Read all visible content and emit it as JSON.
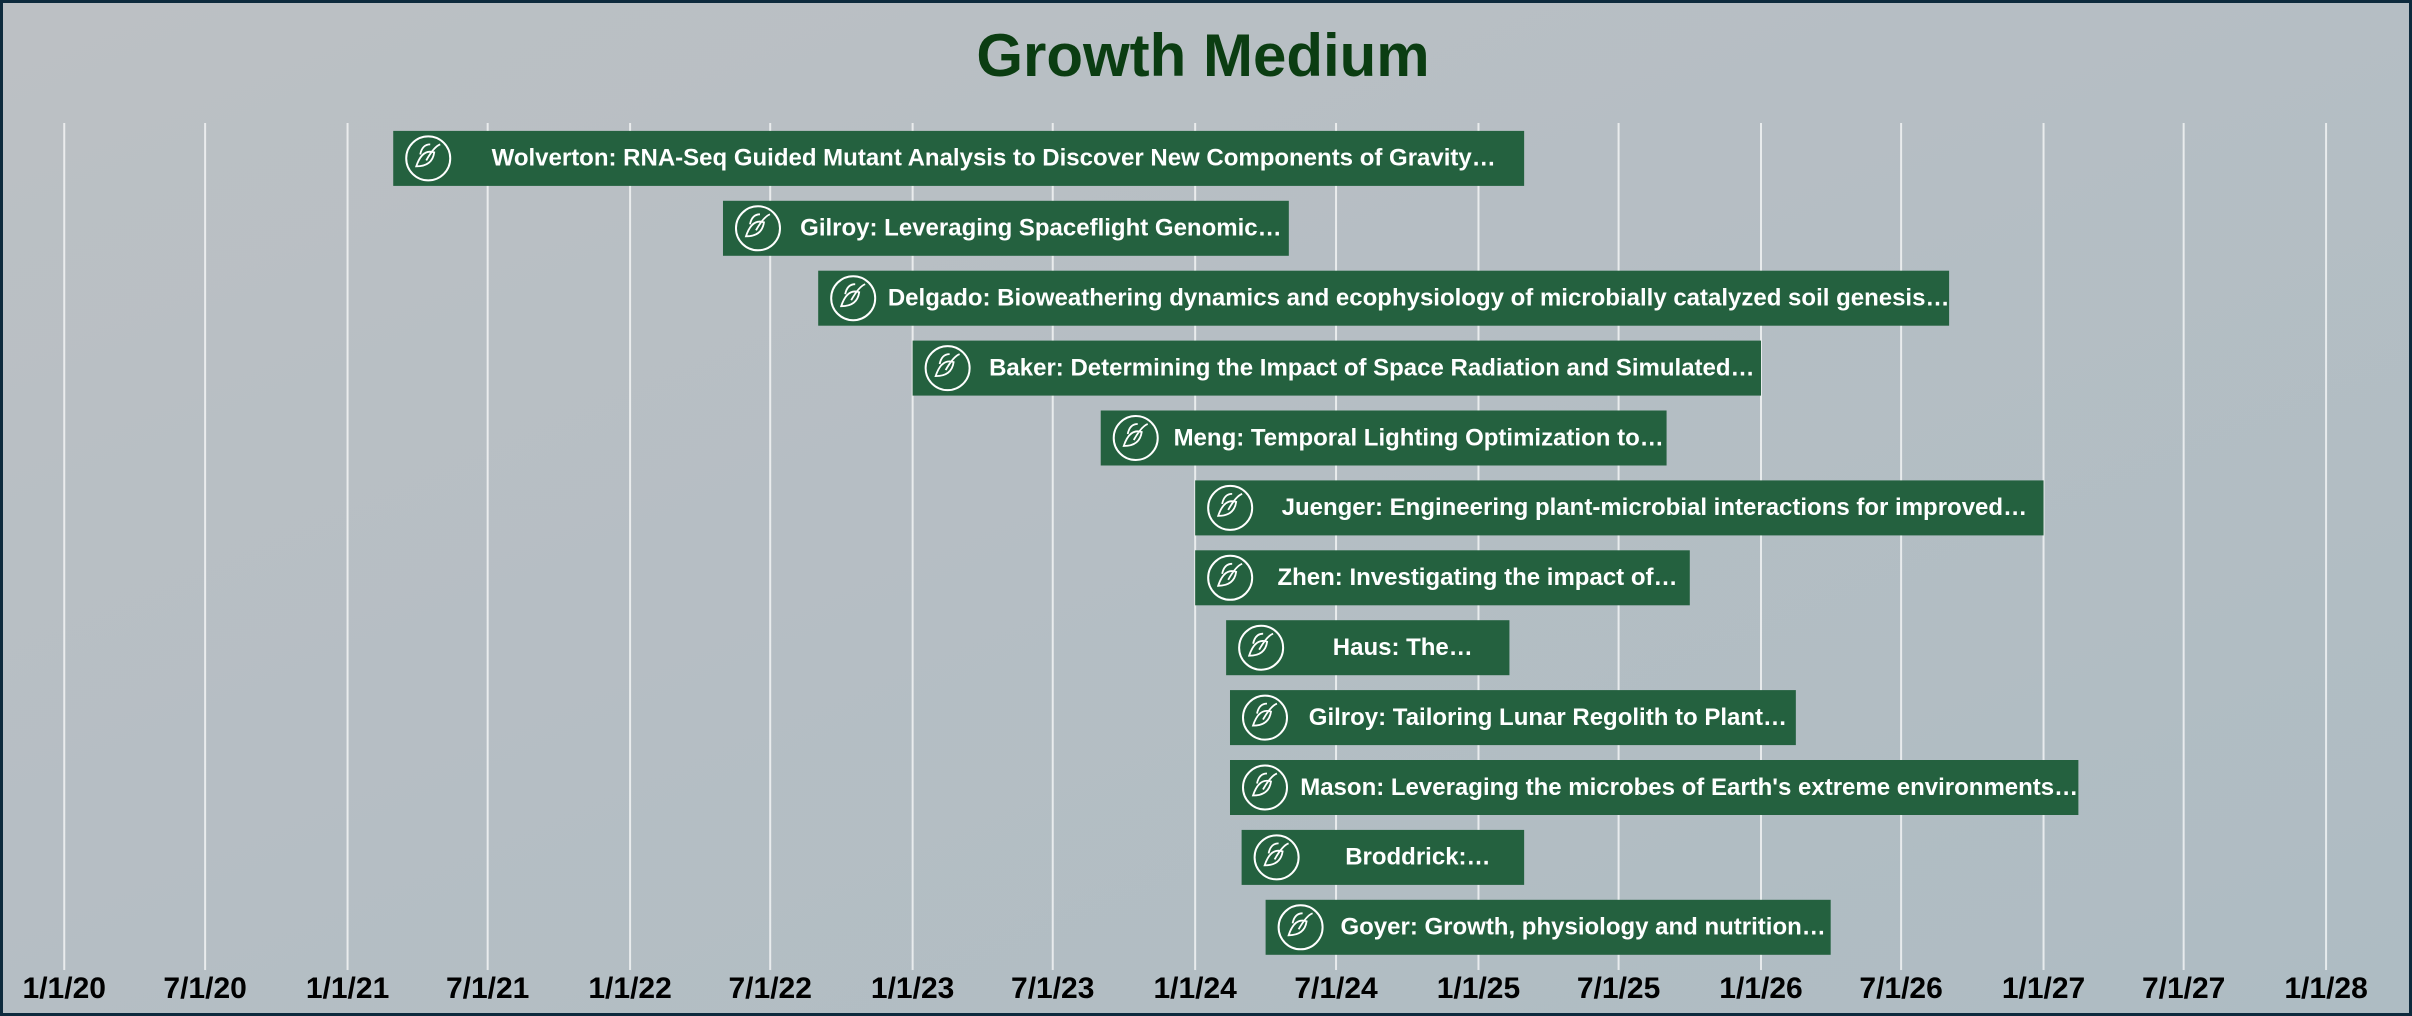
{
  "chart_data": {
    "type": "timeline",
    "title": "Growth Medium",
    "color": "#24613f",
    "grid": true,
    "xlim": [
      "2019-10-10",
      "2028-04-21"
    ],
    "xticks": [
      {
        "value": "2020-01-01",
        "label": "1/1/20"
      },
      {
        "value": "2020-07-01",
        "label": "7/1/20"
      },
      {
        "value": "2021-01-01",
        "label": "1/1/21"
      },
      {
        "value": "2021-07-01",
        "label": "7/1/21"
      },
      {
        "value": "2022-01-01",
        "label": "1/1/22"
      },
      {
        "value": "2022-07-01",
        "label": "7/1/22"
      },
      {
        "value": "2023-01-01",
        "label": "1/1/23"
      },
      {
        "value": "2023-07-01",
        "label": "7/1/23"
      },
      {
        "value": "2024-01-01",
        "label": "1/1/24"
      },
      {
        "value": "2024-07-01",
        "label": "7/1/24"
      },
      {
        "value": "2025-01-01",
        "label": "1/1/25"
      },
      {
        "value": "2025-07-01",
        "label": "7/1/25"
      },
      {
        "value": "2026-01-01",
        "label": "1/1/26"
      },
      {
        "value": "2026-07-01",
        "label": "7/1/26"
      },
      {
        "value": "2027-01-01",
        "label": "1/1/27"
      },
      {
        "value": "2027-07-01",
        "label": "7/1/27"
      },
      {
        "value": "2028-01-01",
        "label": "1/1/28"
      }
    ],
    "tasks": [
      {
        "label": "Wolverton: RNA-Seq Guided Mutant Analysis to Discover New Components of Gravity…",
        "start": "2021-03-01",
        "end": "2025-03-01"
      },
      {
        "label": "Gilroy: Leveraging Spaceflight Genomic…",
        "start": "2022-05-01",
        "end": "2024-05-01"
      },
      {
        "label": "Delgado: Bioweathering dynamics and ecophysiology of microbially catalyzed soil genesis…",
        "start": "2022-09-01",
        "end": "2026-09-01"
      },
      {
        "label": "Baker: Determining the Impact of Space Radiation and Simulated…",
        "start": "2023-01-01",
        "end": "2026-01-01"
      },
      {
        "label": "Meng: Temporal Lighting Optimization to…",
        "start": "2023-09-01",
        "end": "2025-09-01"
      },
      {
        "label": "Juenger: Engineering plant-microbial interactions for improved…",
        "start": "2024-01-01",
        "end": "2027-01-01"
      },
      {
        "label": "Zhen: Investigating the impact of…",
        "start": "2024-01-01",
        "end": "2025-10-01"
      },
      {
        "label": "Haus: The…",
        "start": "2024-02-10",
        "end": "2025-02-10"
      },
      {
        "label": "Gilroy: Tailoring Lunar Regolith to Plant…",
        "start": "2024-02-15",
        "end": "2026-02-15"
      },
      {
        "label": "Mason: Leveraging the microbes of Earth's extreme environments…",
        "start": "2024-02-15",
        "end": "2027-02-15"
      },
      {
        "label": "Broddrick:…",
        "start": "2024-03-01",
        "end": "2025-03-01"
      },
      {
        "label": "Goyer: Growth, physiology and nutrition…",
        "start": "2024-04-01",
        "end": "2026-04-01"
      }
    ]
  }
}
